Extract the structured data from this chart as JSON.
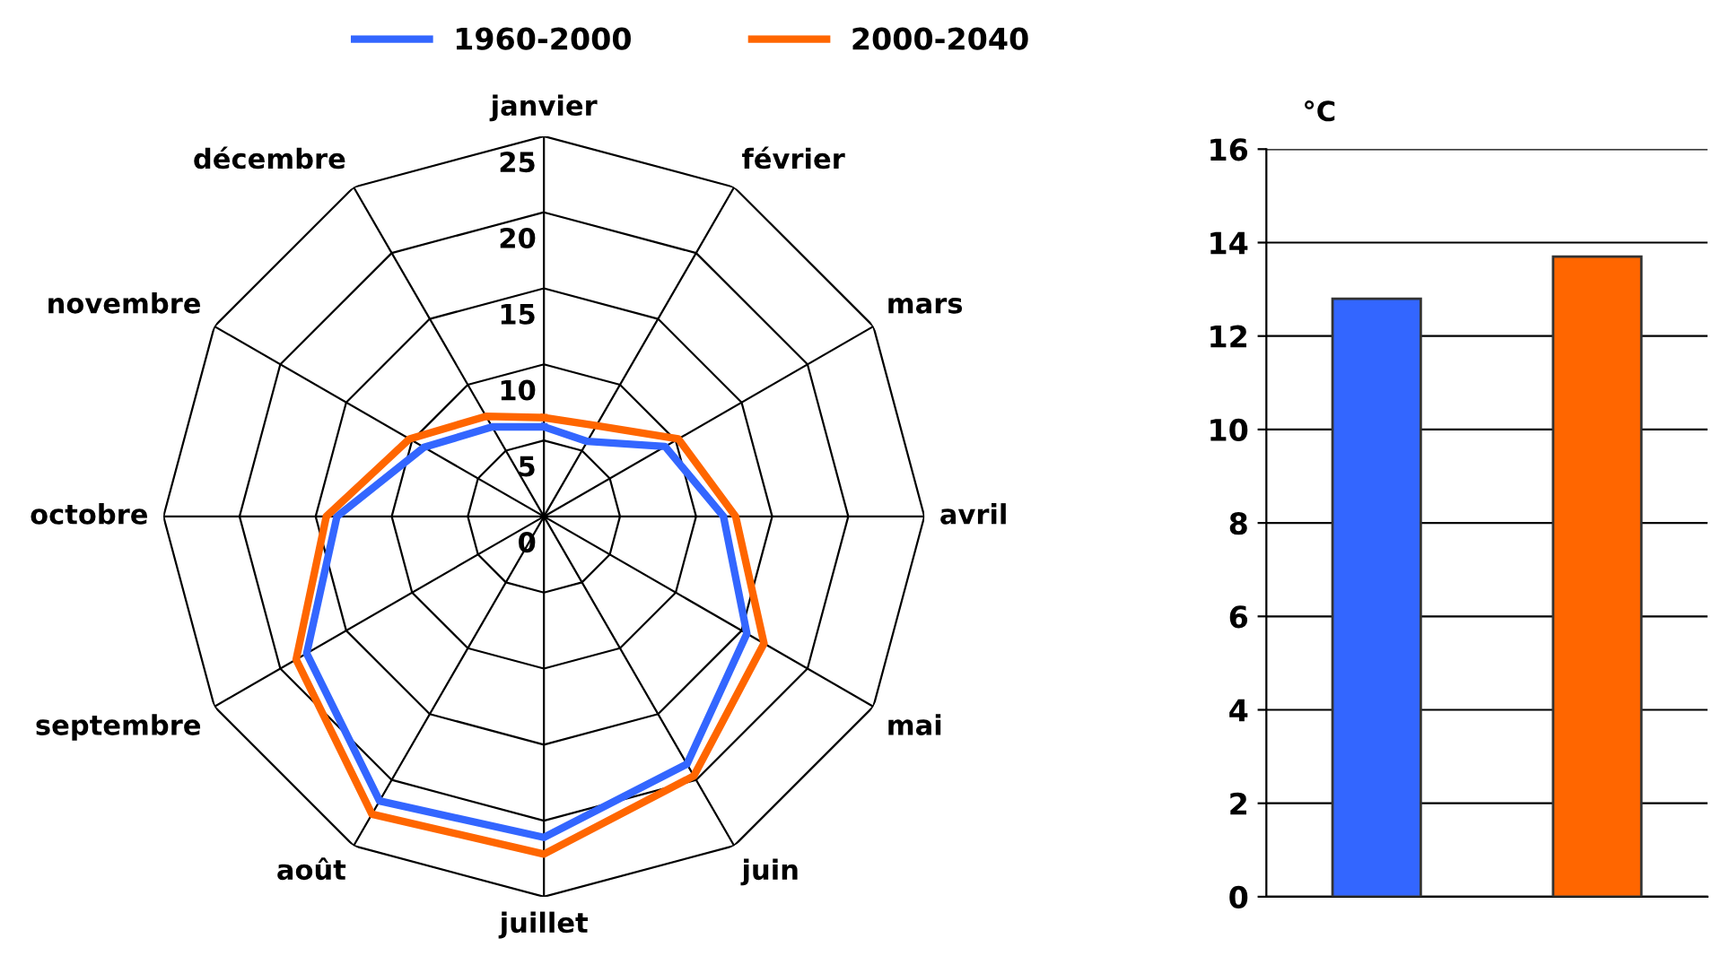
{
  "chart_data": [
    {
      "type": "radar",
      "categories": [
        "janvier",
        "février",
        "mars",
        "avril",
        "mai",
        "juin",
        "juillet",
        "août",
        "septembre",
        "octobre",
        "novembre",
        "décembre"
      ],
      "series": [
        {
          "name": "1960-2000",
          "color": "#3366ff",
          "values": [
            5.9,
            5.7,
            9.2,
            11.8,
            15.4,
            18.8,
            21.1,
            21.6,
            18.0,
            13.6,
            9.1,
            6.8
          ]
        },
        {
          "name": "2000-2040",
          "color": "#ff6600",
          "values": [
            6.5,
            6.9,
            10.2,
            12.6,
            16.7,
            19.7,
            22.2,
            22.6,
            18.8,
            14.3,
            10.2,
            7.6
          ]
        }
      ],
      "ylim": [
        0,
        25
      ],
      "yticks": [
        0,
        5,
        10,
        15,
        20,
        25
      ],
      "grid": true,
      "legend": "top",
      "marker": "none",
      "line_style": "solid"
    },
    {
      "type": "bar",
      "ylabel": "°C",
      "categories": [
        null,
        null
      ],
      "values": [
        12.8,
        13.7
      ],
      "colors": [
        "#3366ff",
        "#ff6600"
      ],
      "ylim": [
        0,
        16
      ],
      "yticks": [
        0,
        2,
        4,
        6,
        8,
        10,
        12,
        14,
        16
      ],
      "grid": "y"
    }
  ]
}
